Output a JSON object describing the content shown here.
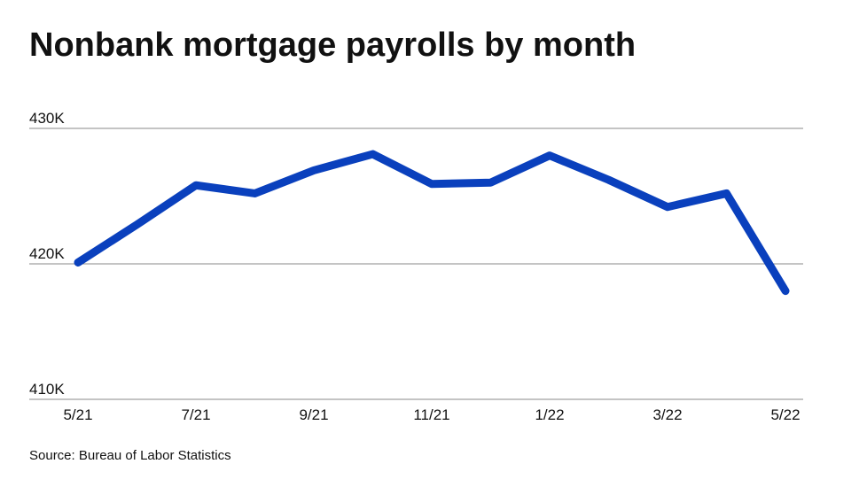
{
  "chart_data": {
    "type": "line",
    "title": "Nonbank mortgage payrolls by month",
    "source": "Source: Bureau of Labor Statistics",
    "categories": [
      "5/21",
      null,
      "7/21",
      null,
      "9/21",
      null,
      "11/21",
      null,
      "1/22",
      null,
      "3/22",
      null,
      "5/22"
    ],
    "series": [
      {
        "name": "Nonbank mortgage payrolls",
        "color": "#0a40bd",
        "values": [
          420.1,
          422.9,
          425.8,
          425.2,
          426.9,
          428.1,
          425.9,
          426.0,
          428.0,
          426.2,
          424.2,
          425.2,
          418.0
        ]
      }
    ],
    "ylim": [
      410,
      430
    ],
    "yticks": [
      {
        "value": 410,
        "label": "410K"
      },
      {
        "value": 420,
        "label": "420K"
      },
      {
        "value": 430,
        "label": "430K"
      }
    ],
    "grid": true
  }
}
